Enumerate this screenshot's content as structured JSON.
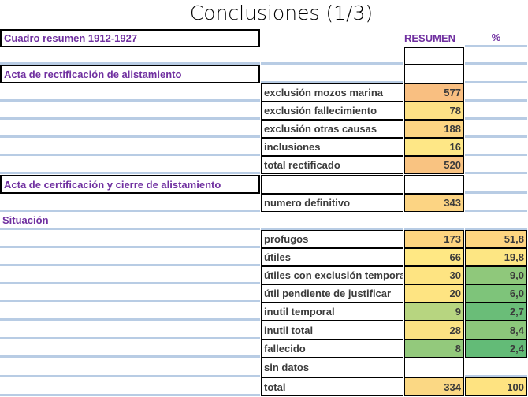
{
  "title": "Conclusiones (1/3)",
  "header": {
    "left": "Cuadro resumen 1912-1927",
    "resumen": "RESUMEN",
    "pct": "%"
  },
  "sections": {
    "acta_rect": "Acta de rectificación de alistamiento",
    "acta_cert": "Acta de certificación y cierre de alistamiento",
    "situacion": "Situación"
  },
  "rows": [
    {
      "label": "exclusión  mozos marina",
      "value": "577",
      "pct": "",
      "value_color": "#f9bf81",
      "pct_color": ""
    },
    {
      "label": "exclusión fallecimiento",
      "value": "78",
      "pct": "",
      "value_color": "#fde185",
      "pct_color": ""
    },
    {
      "label": "exclusión otras causas",
      "value": "188",
      "pct": "",
      "value_color": "#fcd483",
      "pct_color": ""
    },
    {
      "label": "inclusiones",
      "value": "16",
      "pct": "",
      "value_color": "#fee786",
      "pct_color": ""
    },
    {
      "label": "total rectificado",
      "value": "520",
      "pct": "",
      "value_color": "#f9c381",
      "pct_color": ""
    },
    {
      "label": "numero definitivo",
      "value": "343",
      "pct": "",
      "value_color": "#fcd483",
      "pct_color": ""
    },
    {
      "label": "profugos",
      "value": "173",
      "pct": "51,8",
      "value_color": "#fed580",
      "pct_color": "#fed580"
    },
    {
      "label": "útiles",
      "value": "66",
      "pct": "19,8",
      "value_color": "#ffe884",
      "pct_color": "#fde683"
    },
    {
      "label": "útiles con exclusión temporal",
      "value": "30",
      "pct": "9,0",
      "value_color": "#fee482",
      "pct_color": "#8fc87b"
    },
    {
      "label": "útil pendiente de justificar",
      "value": "20",
      "pct": "6,0",
      "value_color": "#fee482",
      "pct_color": "#7ec47a"
    },
    {
      "label": "inutil temporal",
      "value": "9",
      "pct": "2,7",
      "value_color": "#b7d580",
      "pct_color": "#6abd78"
    },
    {
      "label": "inutil total",
      "value": "28",
      "pct": "8,4",
      "value_color": "#fbe283",
      "pct_color": "#8cc77b"
    },
    {
      "label": "fallecido",
      "value": "8",
      "pct": "2,4",
      "value_color": "#93c97c",
      "pct_color": "#63bb77"
    },
    {
      "label": "sin datos",
      "value": "",
      "pct": "",
      "value_color": "",
      "pct_color": ""
    },
    {
      "label": "total",
      "value": "334",
      "pct": "100",
      "value_color": "#fbd884",
      "pct_color": "#fee381"
    }
  ]
}
